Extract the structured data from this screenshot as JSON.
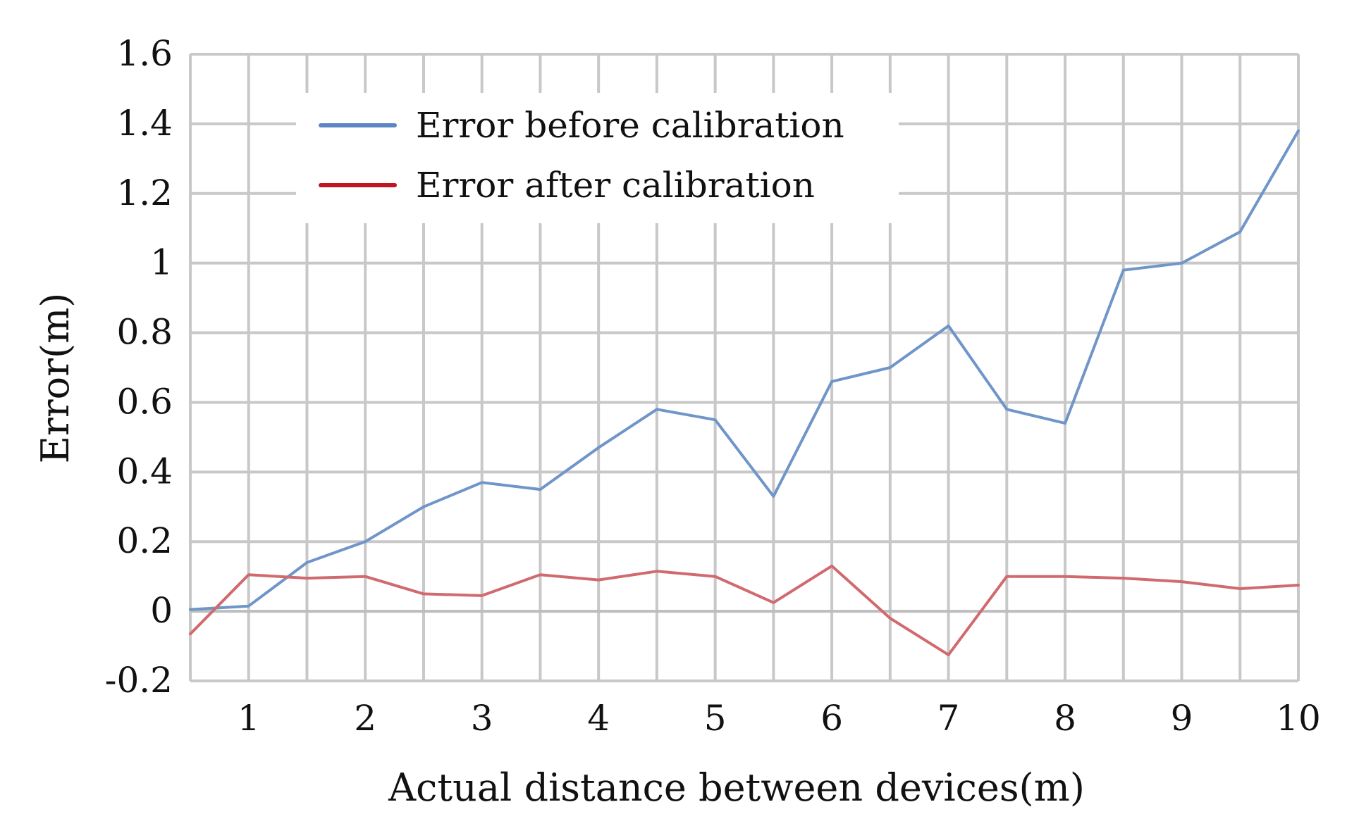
{
  "chart_data": {
    "type": "line",
    "title": "",
    "xlabel": "Actual distance between devices(m)",
    "ylabel": "Error(m)",
    "x": [
      0.5,
      1,
      1.5,
      2,
      2.5,
      3,
      3.5,
      4,
      4.5,
      5,
      5.5,
      6,
      6.5,
      7,
      7.5,
      8,
      8.5,
      9,
      9.5,
      10
    ],
    "xlim": [
      0.5,
      10
    ],
    "ylim": [
      -0.2,
      1.6
    ],
    "x_ticks": [
      1,
      2,
      3,
      4,
      5,
      6,
      7,
      8,
      9,
      10
    ],
    "y_ticks": [
      -0.2,
      0,
      0.2,
      0.4,
      0.6,
      0.8,
      1,
      1.2,
      1.4,
      1.6
    ],
    "x_tick_labels": [
      "1",
      "2",
      "3",
      "4",
      "5",
      "6",
      "7",
      "8",
      "9",
      "10"
    ],
    "y_tick_labels": [
      "-0.2",
      "0",
      "0.2",
      "0.4",
      "0.6",
      "0.8",
      "1",
      "1.2",
      "1.4",
      "1.6"
    ],
    "grid": true,
    "legend_position": "top-left",
    "series": [
      {
        "name": "Error before calibration",
        "color": "#6f95c9",
        "legend_color": "#5b86c4",
        "values": [
          0.005,
          0.015,
          0.14,
          0.2,
          0.3,
          0.37,
          0.35,
          0.47,
          0.58,
          0.55,
          0.33,
          0.66,
          0.7,
          0.82,
          0.58,
          0.54,
          0.98,
          1.0,
          1.09,
          1.38
        ]
      },
      {
        "name": "Error after calibration",
        "color": "#d06a6f",
        "legend_color": "#c0161f",
        "values": [
          -0.065,
          0.105,
          0.095,
          0.1,
          0.05,
          0.045,
          0.105,
          0.09,
          0.115,
          0.1,
          0.025,
          0.13,
          -0.02,
          -0.125,
          0.1,
          0.1,
          0.095,
          0.085,
          0.065,
          0.075
        ]
      }
    ]
  }
}
